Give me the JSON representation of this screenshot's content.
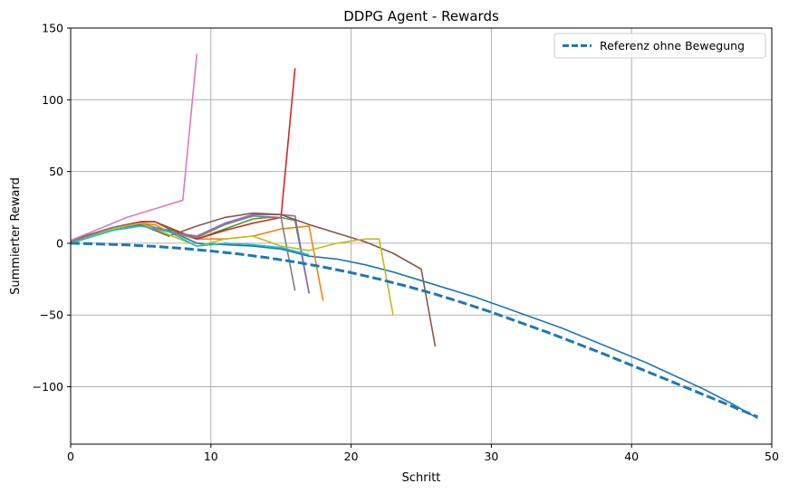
{
  "chart_data": {
    "type": "line",
    "title": "DDPG Agent - Rewards",
    "xlabel": "Schritt",
    "ylabel": "Summierter Reward",
    "xlim": [
      0,
      50
    ],
    "ylim": [
      -140,
      150
    ],
    "xticks": [
      0,
      10,
      20,
      30,
      40,
      50
    ],
    "yticks": [
      -100,
      -50,
      0,
      50,
      100,
      150
    ],
    "xtick_labels": [
      "0",
      "10",
      "20",
      "30",
      "40",
      "50"
    ],
    "ytick_labels": [
      "−100",
      "−50",
      "0",
      "50",
      "100",
      "150"
    ],
    "grid": true,
    "legend": {
      "placement": "top-right",
      "entries": [
        "Referenz ohne Bewegung"
      ]
    },
    "reference": {
      "name": "Referenz ohne Bewegung",
      "color": "#1f77b4",
      "dashed": true,
      "x": [
        0,
        2,
        4,
        6,
        8,
        10,
        12,
        14,
        16,
        18,
        20,
        22,
        24,
        26,
        28,
        30,
        32,
        34,
        36,
        38,
        40,
        42,
        44,
        46,
        48,
        49
      ],
      "y": [
        0,
        -0.5,
        -1.2,
        -2.2,
        -3.6,
        -5.4,
        -7.5,
        -10,
        -13,
        -16.5,
        -20.5,
        -25,
        -30,
        -35.5,
        -41.5,
        -48,
        -55,
        -62,
        -69.5,
        -77,
        -85,
        -93,
        -101,
        -109,
        -117,
        -121
      ]
    },
    "series": [
      {
        "color": "#1f77b4",
        "x": [
          0,
          3,
          5,
          7,
          9,
          11,
          13,
          15,
          17,
          19,
          21,
          23,
          25,
          27,
          29,
          31,
          33,
          35,
          37,
          39,
          41,
          43,
          45,
          47,
          49
        ],
        "y": [
          0,
          10,
          13,
          9,
          0,
          -1,
          -2,
          -4,
          -9,
          -11,
          -15,
          -20,
          -26,
          -32,
          -38,
          -45,
          -52,
          -59,
          -67,
          -75,
          -83,
          -92,
          -101,
          -111,
          -122
        ]
      },
      {
        "color": "#ff7f0e",
        "x": [
          0,
          3,
          5,
          6,
          7,
          9,
          11,
          13,
          15,
          17,
          18
        ],
        "y": [
          2,
          11,
          14,
          13,
          8,
          3,
          3,
          5,
          10,
          12,
          -40
        ]
      },
      {
        "color": "#2ca02c",
        "x": [
          0,
          3,
          5,
          6,
          7,
          9,
          11,
          13,
          14,
          15,
          16,
          17
        ],
        "y": [
          1,
          11,
          15,
          15,
          10,
          3,
          10,
          17,
          18,
          18,
          16,
          -35
        ]
      },
      {
        "color": "#d62728",
        "x": [
          0,
          3,
          5,
          6,
          7,
          8,
          9,
          11,
          13,
          15,
          16
        ],
        "y": [
          2,
          11,
          15,
          15,
          11,
          7,
          3,
          9,
          14,
          18,
          122
        ]
      },
      {
        "color": "#9467bd",
        "x": [
          0,
          3,
          5,
          7,
          9,
          11,
          13,
          15,
          16,
          17
        ],
        "y": [
          2,
          11,
          14,
          8,
          5,
          14,
          20,
          20,
          19,
          -35
        ]
      },
      {
        "color": "#8c564b",
        "x": [
          0,
          3,
          5,
          7,
          9,
          11,
          13,
          15,
          17,
          19,
          21,
          23,
          25,
          26
        ],
        "y": [
          2,
          11,
          13,
          5,
          12,
          18,
          21,
          20,
          13,
          7,
          1,
          -7,
          -18,
          -72
        ]
      },
      {
        "color": "#e377c2",
        "x": [
          0,
          2,
          4,
          6,
          8,
          9
        ],
        "y": [
          2,
          10,
          18,
          24,
          30,
          132
        ]
      },
      {
        "color": "#7f7f7f",
        "x": [
          0,
          3,
          5,
          7,
          9,
          11,
          13,
          15,
          16
        ],
        "y": [
          1,
          11,
          14,
          8,
          4,
          13,
          19,
          18,
          -33
        ]
      },
      {
        "color": "#bcbd22",
        "x": [
          0,
          3,
          5,
          7,
          9,
          11,
          13,
          15,
          17,
          19,
          21,
          22,
          23
        ],
        "y": [
          0,
          10,
          14,
          6,
          -2,
          3,
          5,
          -2,
          -5,
          0,
          3,
          3,
          -50
        ]
      },
      {
        "color": "#17becf",
        "x": [
          0,
          3,
          5,
          7,
          9,
          11,
          13,
          15,
          17
        ],
        "y": [
          0,
          9,
          12,
          8,
          -2,
          0,
          -1,
          -3,
          -8
        ]
      }
    ]
  }
}
